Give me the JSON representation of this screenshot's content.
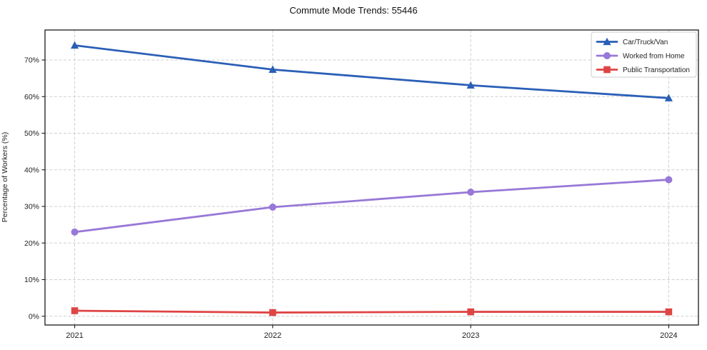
{
  "page": {
    "title": "Commute Mode Trends: 55446"
  },
  "chart_data": {
    "type": "line",
    "title": "Commute Mode Trends: 55446",
    "xlabel": "",
    "ylabel": "Percentage of Workers (%)",
    "categories": [
      2021,
      2022,
      2023,
      2024
    ],
    "series": [
      {
        "name": "Car/Truck/Van",
        "values": [
          74.0,
          67.4,
          63.1,
          59.6
        ],
        "color": "#2a5fb7",
        "marker": "triangle"
      },
      {
        "name": "Worked from Home",
        "values": [
          23.0,
          29.8,
          33.9,
          37.3
        ],
        "color": "#9878d8",
        "marker": "circle"
      },
      {
        "name": "Public Transportation",
        "values": [
          1.5,
          1.0,
          1.2,
          1.2
        ],
        "color": "#df4444",
        "marker": "square"
      }
    ],
    "yticks": [
      0,
      10,
      20,
      30,
      40,
      50,
      60,
      70
    ],
    "ytick_format": "{}%",
    "ylim": [
      -2.4,
      78.2
    ],
    "xlim": [
      2020.85,
      2024.15
    ],
    "grid": true,
    "grid_color": "#cfcfcf",
    "spine_color": "#1a1a1a",
    "legend_position": "top-right",
    "legend_border_color": "#cccccc",
    "legend_background": "#ffffff"
  }
}
